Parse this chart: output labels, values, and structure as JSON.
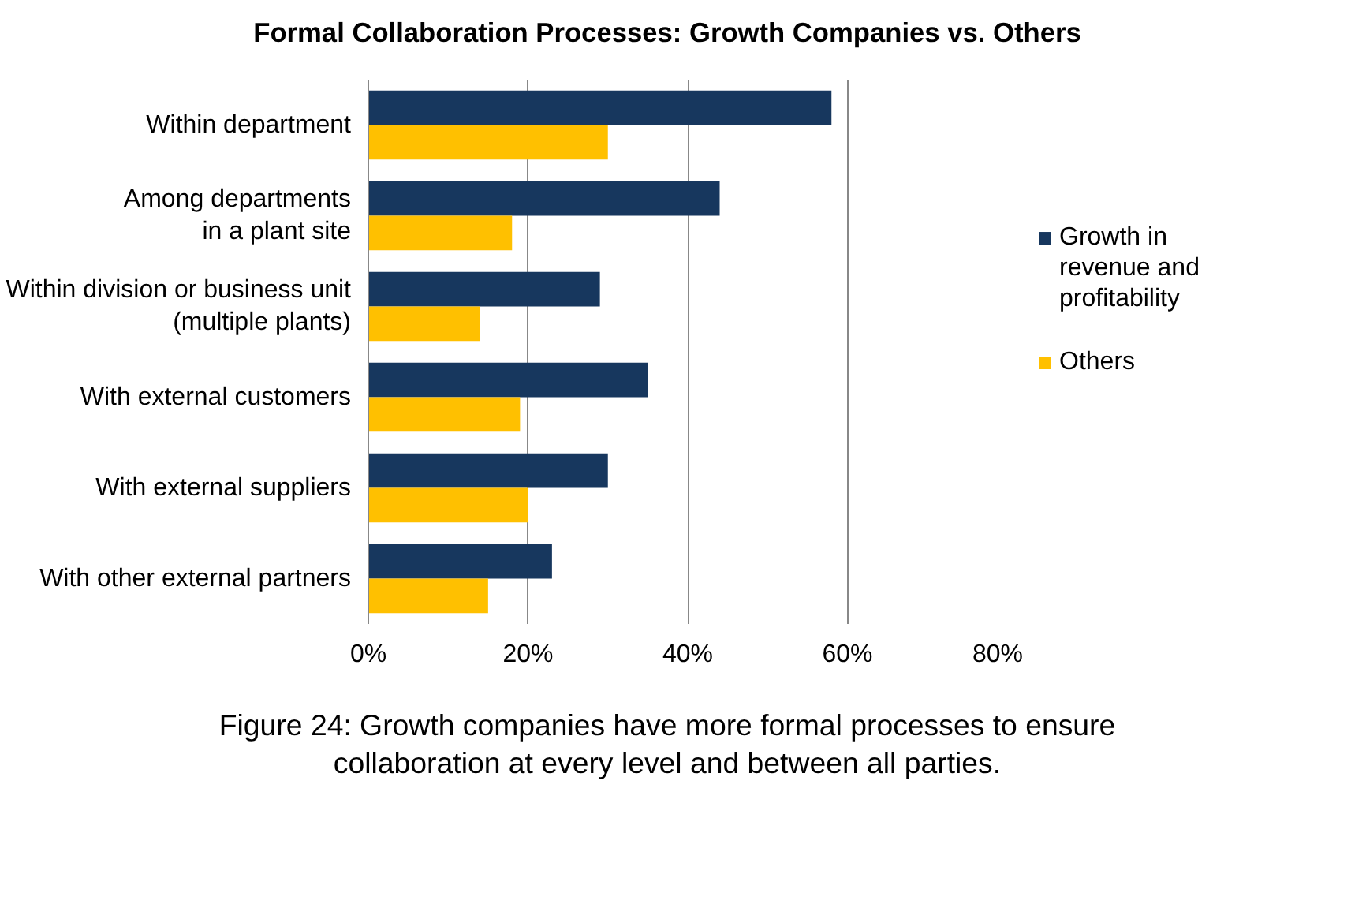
{
  "chart_data": {
    "type": "bar",
    "orientation": "horizontal",
    "title": "Formal Collaboration Processes: Growth Companies vs. Others",
    "categories": [
      "Within department",
      "Among departments\nin a plant site",
      "Within division or business unit\n(multiple plants)",
      "With external customers",
      "With external suppliers",
      "With other external partners"
    ],
    "series": [
      {
        "name": "Growth in revenue and profitability",
        "color": "#17375e",
        "values": [
          58,
          44,
          29,
          35,
          30,
          23
        ]
      },
      {
        "name": "Others",
        "color": "#ffc000",
        "values": [
          30,
          18,
          14,
          19,
          20,
          15
        ]
      }
    ],
    "xlim": [
      0,
      80
    ],
    "xticks": [
      {
        "value": 0,
        "label": "0%"
      },
      {
        "value": 20,
        "label": "20%"
      },
      {
        "value": 40,
        "label": "40%"
      },
      {
        "value": 60,
        "label": "60%"
      },
      {
        "value": 80,
        "label": "80%"
      }
    ],
    "grid": "x",
    "legend": "right",
    "annotations": [
      "Figure 24: Growth companies have more formal processes to ensure collaboration at every level and between all parties."
    ]
  }
}
